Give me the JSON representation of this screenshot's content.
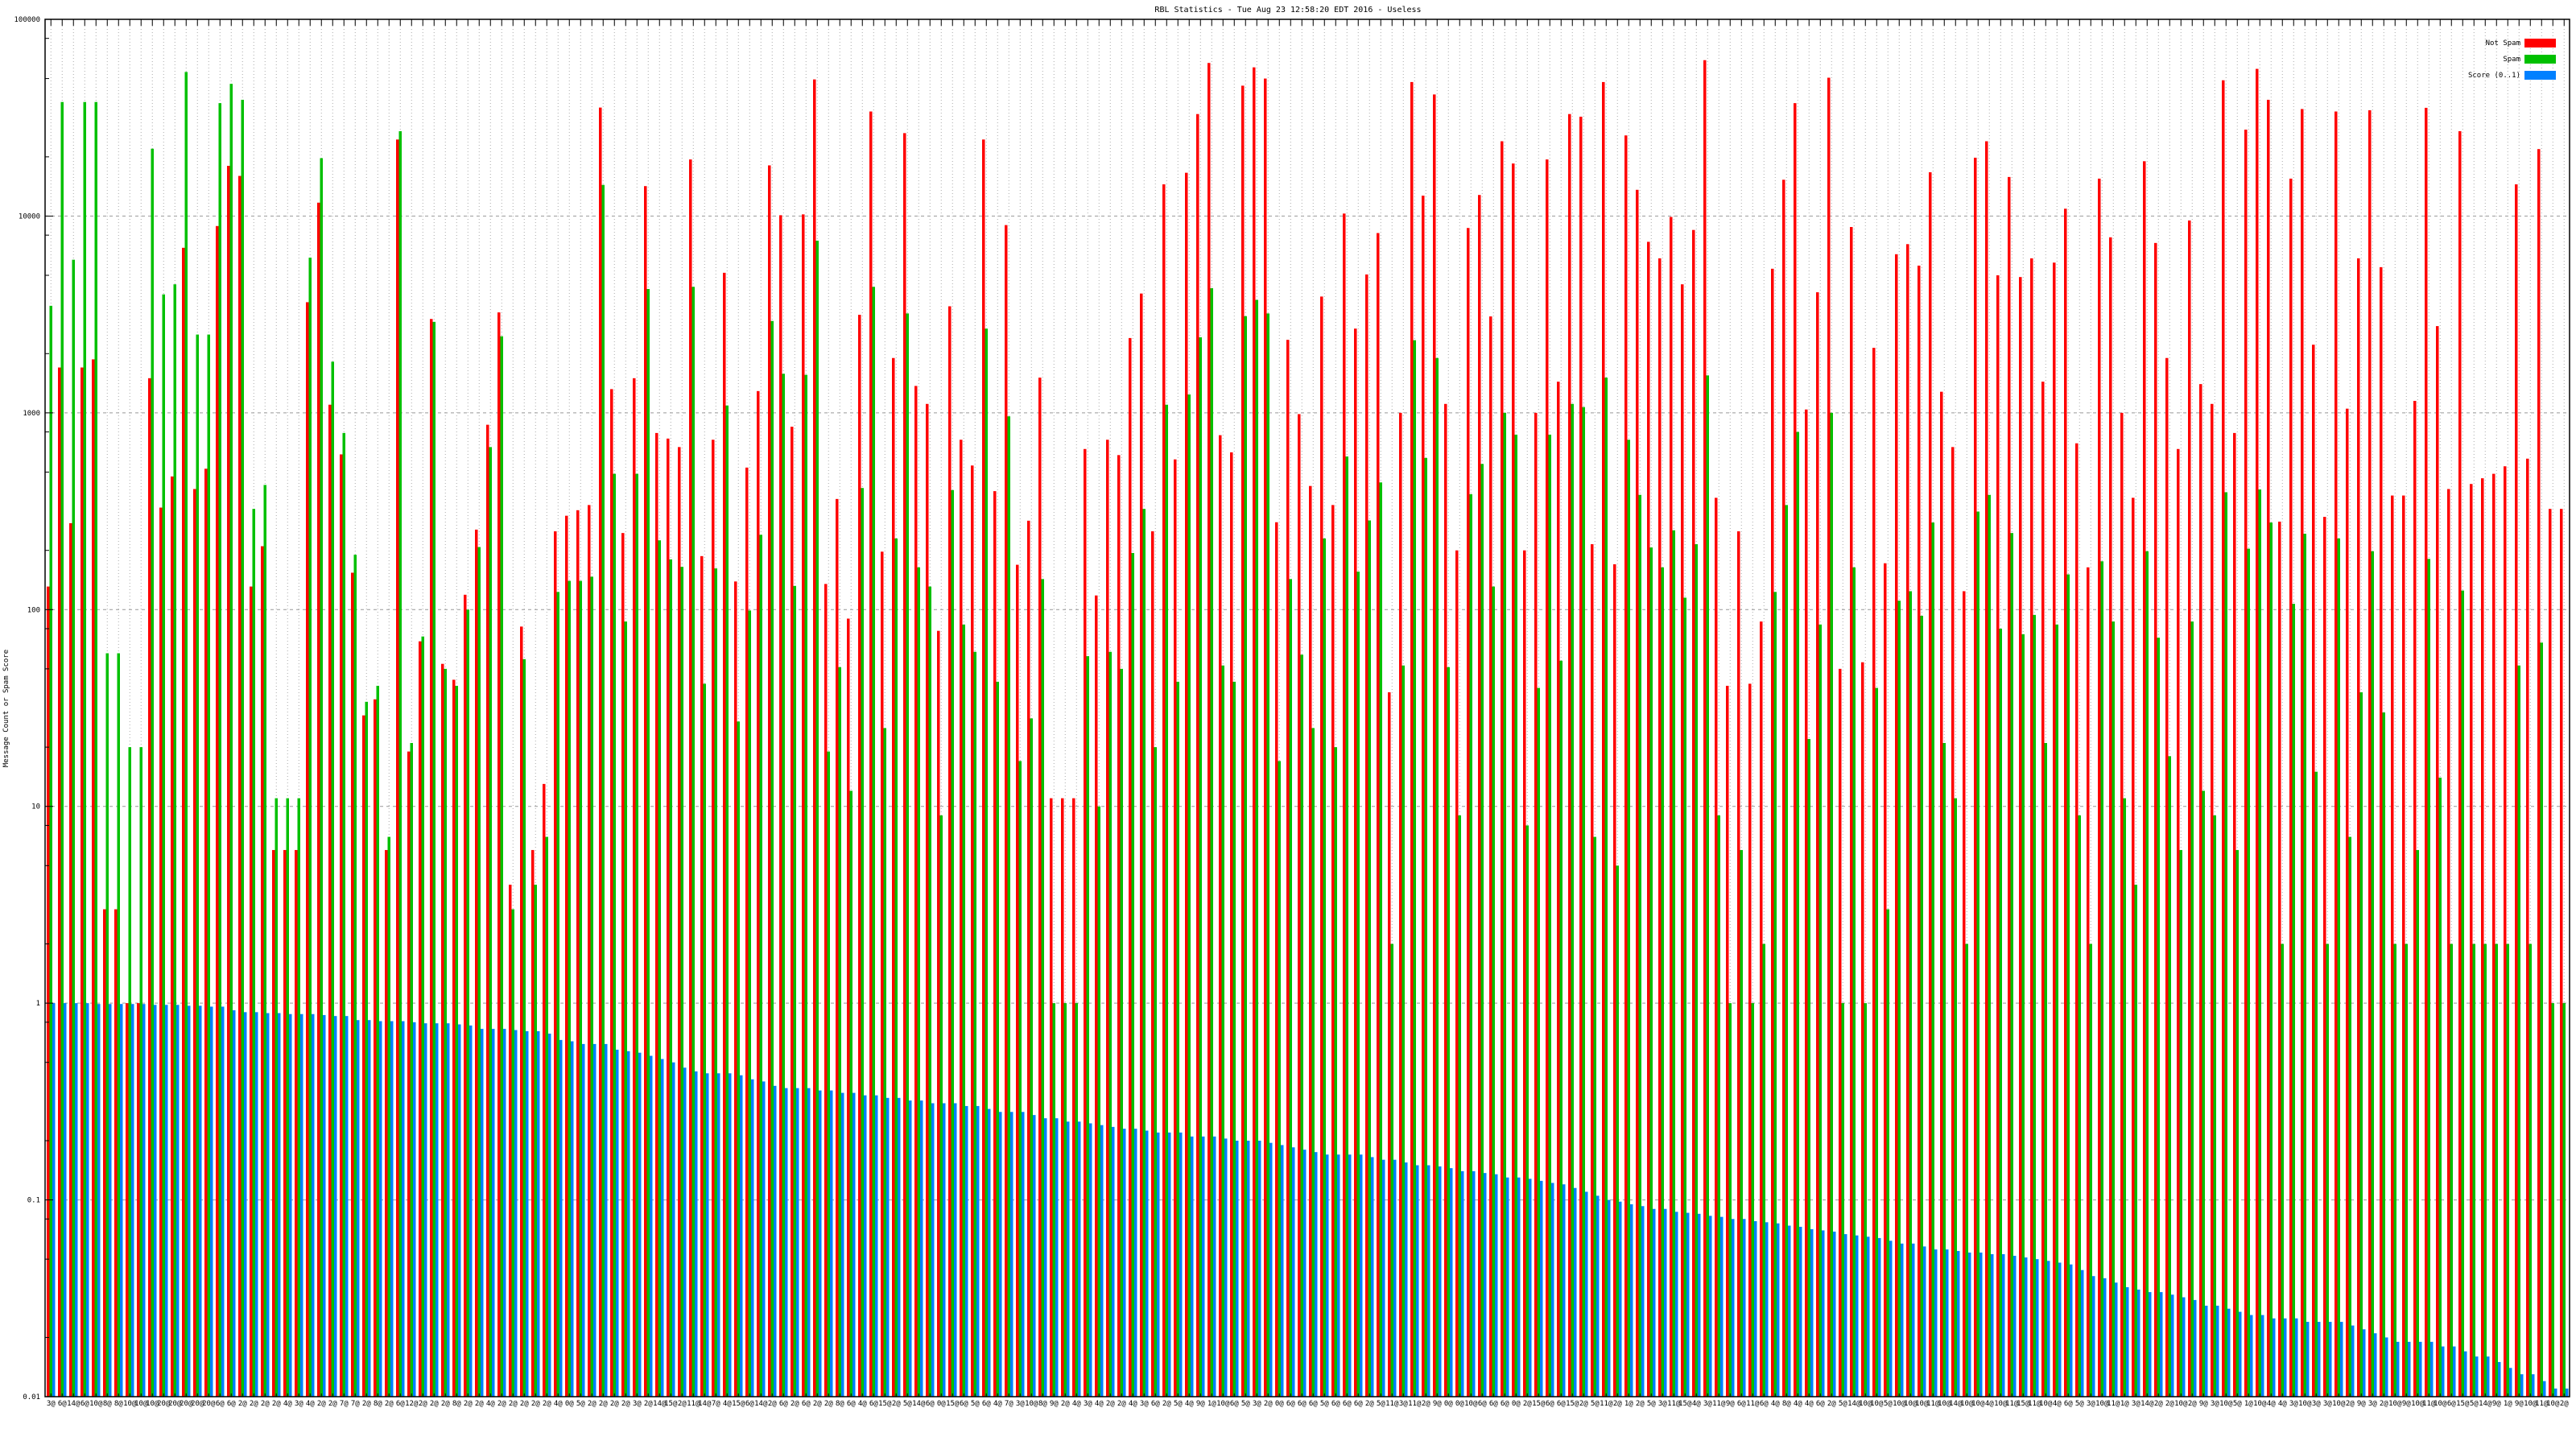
{
  "chart_data": {
    "type": "bar",
    "title": "RBL Statistics - Tue Aug 23 12:58:20 EDT 2016 - Useless",
    "xlabel": "",
    "ylabel": "Message Count or Spam Score",
    "yscale": "log",
    "ylim": [
      0.01,
      100000
    ],
    "yticks": [
      "100000",
      "10000",
      "1000",
      "100",
      "10",
      "1",
      "0.1",
      "0.01"
    ],
    "ytick_values": [
      100000,
      10000,
      1000,
      100,
      10,
      1,
      0.1,
      0.01
    ],
    "grid": true,
    "legend_position": "top-right",
    "colors": {
      "not_spam": "#ff0000",
      "spam": "#00c000",
      "score": "#0080ff"
    },
    "categories": [
      "3@",
      "6@",
      "14@",
      "6@",
      "10@",
      "8@",
      "8@",
      "10@",
      "10@",
      "10@",
      "20@",
      "20@",
      "20@",
      "20@",
      "20@",
      "6@",
      "6@",
      "2@",
      "2@",
      "2@",
      "2@",
      "4@",
      "3@",
      "4@",
      "2@",
      "2@",
      "7@",
      "7@",
      "2@",
      "8@",
      "2@",
      "6@",
      "12@",
      "2@",
      "2@",
      "2@",
      "8@",
      "2@",
      "2@",
      "4@",
      "2@",
      "2@",
      "2@",
      "2@",
      "2@",
      "4@",
      "0@",
      "5@",
      "2@",
      "2@",
      "2@",
      "2@",
      "3@",
      "2@",
      "14@",
      "15@",
      "2@",
      "11@",
      "14@",
      "7@",
      "4@",
      "15@",
      "6@",
      "14@",
      "2@",
      "6@",
      "2@",
      "6@",
      "2@",
      "2@",
      "8@",
      "6@",
      "4@",
      "6@",
      "15@",
      "2@",
      "5@",
      "14@",
      "6@",
      "0@",
      "15@",
      "6@",
      "5@",
      "6@",
      "4@",
      "7@",
      "3@",
      "10@",
      "8@",
      "9@",
      "2@",
      "4@",
      "3@",
      "4@",
      "2@",
      "2@",
      "4@",
      "3@",
      "6@",
      "2@",
      "5@",
      "4@",
      "9@",
      "1@",
      "10@",
      "6@",
      "5@",
      "3@",
      "2@",
      "0@",
      "6@",
      "6@",
      "6@",
      "5@",
      "6@",
      "6@",
      "6@",
      "2@",
      "5@",
      "11@",
      "3@",
      "11@",
      "2@",
      "9@",
      "0@",
      "0@",
      "10@",
      "6@",
      "6@",
      "6@",
      "0@",
      "2@",
      "15@",
      "6@",
      "6@",
      "15@",
      "2@",
      "5@",
      "11@",
      "2@",
      "1@",
      "2@",
      "5@",
      "3@",
      "11@",
      "15@",
      "4@",
      "3@",
      "11@",
      "9@",
      "6@",
      "11@",
      "6@",
      "4@",
      "8@",
      "4@",
      "4@",
      "6@",
      "2@",
      "5@",
      "14@",
      "10@",
      "10@",
      "5@",
      "10@",
      "10@",
      "10@",
      "11@",
      "10@",
      "14@",
      "10@",
      "10@",
      "4@",
      "10@",
      "11@",
      "15@",
      "11@",
      "10@",
      "4@",
      "6@",
      "5@",
      "3@",
      "10@",
      "11@",
      "1@",
      "3@",
      "14@",
      "2@",
      "2@",
      "10@",
      "2@",
      "9@",
      "3@",
      "10@",
      "5@",
      "1@",
      "10@",
      "4@",
      "4@",
      "3@",
      "10@",
      "3@",
      "3@",
      "10@",
      "2@",
      "9@",
      "3@",
      "2@",
      "10@",
      "9@",
      "10@",
      "11@",
      "10@",
      "6@",
      "15@",
      "5@",
      "14@",
      "9@",
      "1@",
      "9@",
      "10@",
      "11@",
      "10@",
      "2@"
    ],
    "series": [
      {
        "name": "Not Spam",
        "values": [
          131,
          1700,
          275,
          1700,
          1870,
          3,
          3,
          1,
          1,
          1500,
          330,
          475,
          6900,
          410,
          520,
          8900,
          18000,
          16000,
          131,
          210,
          6,
          6,
          6,
          3650,
          11700,
          1100,
          615,
          154,
          29,
          35,
          6,
          24500,
          19,
          69,
          3000,
          53,
          44,
          119,
          255,
          870,
          3240,
          4,
          82,
          6,
          13,
          250,
          300,
          320,
          340,
          35600,
          1320,
          245,
          1500,
          14200,
          790,
          740,
          670,
          19400,
          187,
          730,
          5150,
          139,
          527,
          1290,
          18100,
          10100,
          850,
          10200,
          49500,
          135,
          365,
          90,
          3150,
          34000,
          197,
          1900,
          26400,
          1370,
          1110,
          78,
          3480,
          730,
          540,
          24500,
          400,
          9000,
          169,
          283,
          1510,
          11,
          11,
          11,
          655,
          118,
          730,
          610,
          2400,
          4040,
          250,
          14500,
          580,
          16600,
          33000,
          60000,
          770,
          630,
          46000,
          57000,
          50000,
          278,
          2350,
          985,
          425,
          3900,
          340,
          10300,
          2680,
          5050,
          8200,
          38,
          1000,
          48000,
          12700,
          41500,
          1110,
          200,
          8700,
          12800,
          3090,
          24000,
          18500,
          200,
          1000,
          19400,
          1440,
          33000,
          32000,
          215,
          48000,
          170,
          25700,
          13600,
          7400,
          6100,
          9900,
          4500,
          8500,
          62000,
          370,
          41,
          250,
          42,
          87,
          5400,
          15300,
          37500,
          1040,
          4100,
          50500,
          50,
          8800,
          54,
          2140,
          172,
          6400,
          7200,
          5600,
          16700,
          1280,
          670,
          124,
          19800,
          24000,
          5000,
          15800,
          4900,
          6100,
          1440,
          5800,
          10900,
          700,
          164,
          15500,
          7800,
          1000,
          370,
          19000,
          7300,
          1900,
          655,
          9500,
          1400,
          1110,
          49000,
          790,
          27500,
          56000,
          39000,
          280,
          15500,
          35000,
          2220,
          296,
          34000,
          1050,
          6100,
          34500,
          5500,
          380,
          380,
          1150,
          35500,
          2760,
          410,
          27000,
          435,
          465,
          490,
          535,
          14500,
          585,
          21900,
          325,
          325
        ]
      },
      {
        "name": "Spam",
        "values": [
          3500,
          38000,
          6000,
          38000,
          38000,
          60,
          60,
          20,
          20,
          22000,
          4000,
          4500,
          54000,
          2500,
          2500,
          37500,
          47000,
          39000,
          325,
          430,
          11,
          11,
          11,
          6150,
          19700,
          1820,
          790,
          190,
          34,
          41,
          7,
          27000,
          21,
          73,
          2900,
          50,
          41,
          100,
          208,
          670,
          2450,
          3,
          56,
          4,
          7,
          123,
          140,
          140,
          147,
          14400,
          490,
          87,
          490,
          4260,
          225,
          180,
          165,
          4370,
          42,
          162,
          1090,
          27,
          99,
          240,
          2930,
          1580,
          132,
          1560,
          7500,
          19,
          51,
          12,
          415,
          4370,
          25,
          230,
          3200,
          164,
          131,
          9,
          405,
          84,
          61,
          2680,
          43,
          960,
          17,
          28,
          143,
          1,
          1,
          1,
          58,
          10,
          61,
          50,
          194,
          325,
          20,
          1100,
          43,
          1240,
          2420,
          4300,
          52,
          43,
          3100,
          3750,
          3200,
          17,
          143,
          59,
          25,
          230,
          20,
          600,
          156,
          284,
          443,
          2,
          52,
          2340,
          590,
          1900,
          51,
          9,
          386,
          550,
          131,
          1000,
          775,
          8,
          40,
          775,
          55,
          1110,
          1070,
          7,
          1510,
          5,
          730,
          383,
          207,
          164,
          253,
          115,
          215,
          1550,
          9,
          1,
          6,
          1,
          2,
          123,
          340,
          800,
          22,
          84,
          1000,
          1,
          164,
          1,
          40,
          3,
          111,
          124,
          93,
          277,
          21,
          11,
          2,
          315,
          383,
          80,
          245,
          75,
          94,
          21,
          84,
          151,
          9,
          2,
          176,
          87,
          11,
          4,
          198,
          72,
          18,
          6,
          87,
          12,
          9,
          395,
          6,
          204,
          408,
          277,
          2,
          107,
          243,
          15,
          2,
          230,
          7,
          38,
          198,
          30,
          2,
          2,
          6,
          181,
          14,
          2,
          125,
          2,
          2,
          2,
          2,
          52,
          2,
          68,
          1,
          1
        ]
      },
      {
        "name": "Score (0..1)",
        "values": [
          1.0,
          1.0,
          1.0,
          1.0,
          0.99,
          0.99,
          0.99,
          0.99,
          0.99,
          0.98,
          0.98,
          0.98,
          0.97,
          0.97,
          0.96,
          0.96,
          0.92,
          0.9,
          0.9,
          0.89,
          0.89,
          0.88,
          0.88,
          0.88,
          0.87,
          0.86,
          0.86,
          0.82,
          0.82,
          0.81,
          0.81,
          0.81,
          0.8,
          0.79,
          0.79,
          0.79,
          0.78,
          0.77,
          0.74,
          0.74,
          0.74,
          0.73,
          0.72,
          0.72,
          0.7,
          0.65,
          0.64,
          0.62,
          0.62,
          0.62,
          0.58,
          0.57,
          0.56,
          0.54,
          0.52,
          0.5,
          0.47,
          0.45,
          0.44,
          0.44,
          0.44,
          0.43,
          0.41,
          0.4,
          0.38,
          0.37,
          0.37,
          0.37,
          0.36,
          0.36,
          0.35,
          0.35,
          0.34,
          0.34,
          0.33,
          0.33,
          0.32,
          0.32,
          0.31,
          0.31,
          0.31,
          0.3,
          0.3,
          0.29,
          0.28,
          0.28,
          0.28,
          0.27,
          0.26,
          0.26,
          0.25,
          0.25,
          0.245,
          0.24,
          0.235,
          0.23,
          0.23,
          0.225,
          0.22,
          0.22,
          0.22,
          0.21,
          0.21,
          0.21,
          0.205,
          0.2,
          0.2,
          0.2,
          0.195,
          0.19,
          0.185,
          0.18,
          0.175,
          0.17,
          0.17,
          0.17,
          0.17,
          0.165,
          0.16,
          0.16,
          0.155,
          0.15,
          0.15,
          0.148,
          0.145,
          0.14,
          0.14,
          0.137,
          0.135,
          0.13,
          0.13,
          0.128,
          0.125,
          0.122,
          0.12,
          0.115,
          0.11,
          0.105,
          0.1,
          0.098,
          0.095,
          0.093,
          0.09,
          0.09,
          0.087,
          0.086,
          0.085,
          0.083,
          0.082,
          0.08,
          0.08,
          0.078,
          0.077,
          0.076,
          0.074,
          0.073,
          0.071,
          0.07,
          0.069,
          0.067,
          0.066,
          0.065,
          0.064,
          0.062,
          0.06,
          0.06,
          0.058,
          0.056,
          0.056,
          0.055,
          0.054,
          0.054,
          0.053,
          0.053,
          0.052,
          0.051,
          0.05,
          0.049,
          0.048,
          0.047,
          0.044,
          0.041,
          0.04,
          0.038,
          0.036,
          0.035,
          0.034,
          0.034,
          0.033,
          0.032,
          0.031,
          0.029,
          0.029,
          0.028,
          0.027,
          0.026,
          0.026,
          0.025,
          0.025,
          0.025,
          0.024,
          0.024,
          0.024,
          0.024,
          0.023,
          0.022,
          0.021,
          0.02,
          0.019,
          0.019,
          0.019,
          0.019,
          0.018,
          0.018,
          0.017,
          0.016,
          0.016,
          0.015,
          0.014,
          0.013,
          0.013,
          0.012,
          0.011,
          0.011
        ]
      }
    ]
  }
}
